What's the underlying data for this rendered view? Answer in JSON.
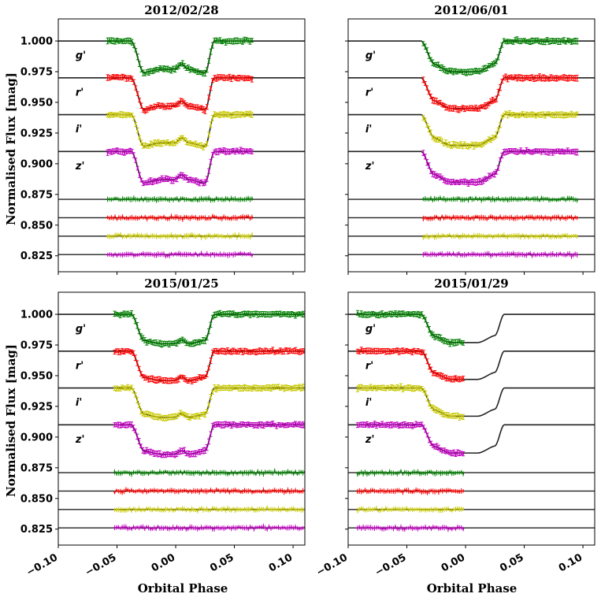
{
  "figure": {
    "ylabel": "Normalised Flux [mag]",
    "xlabel": "Orbital Phase"
  },
  "chart_data": {
    "type": "scatter",
    "x_range": [
      -0.1,
      0.11
    ],
    "y_range": [
      0.812,
      1.018
    ],
    "x_ticks": [
      -0.1,
      -0.05,
      0.0,
      0.05,
      0.1
    ],
    "x_tick_labels": [
      "−0.10",
      "−0.05",
      "0.00",
      "0.05",
      "0.10"
    ],
    "y_ticks": [
      1.0,
      0.975,
      0.95,
      0.925,
      0.9,
      0.875,
      0.85,
      0.825
    ],
    "y_tick_labels": [
      "1.000",
      "0.975",
      "0.950",
      "0.925",
      "0.900",
      "0.875",
      "0.850",
      "0.825"
    ],
    "bands": [
      {
        "label": "g'",
        "color": "#008000",
        "offset": 1.0,
        "residual_level": 0.871
      },
      {
        "label": "r'",
        "color": "#ff0000",
        "offset": 0.97,
        "residual_level": 0.856
      },
      {
        "label": "i'",
        "color": "#c8c800",
        "offset": 0.94,
        "residual_level": 0.841
      },
      {
        "label": "z'",
        "color": "#bf00bf",
        "offset": 0.91,
        "residual_level": 0.826
      }
    ],
    "panels": [
      {
        "title": "2012/02/28",
        "data_x_range": [
          -0.058,
          0.065
        ],
        "ingress_depth": 0.026,
        "bottom_depth": 0.023,
        "spot_bump": 0.004
      },
      {
        "title": "2012/06/01",
        "data_x_range": [
          -0.036,
          0.095
        ],
        "ingress_depth": 0.018,
        "bottom_depth": 0.025,
        "spot_bump": 0.0
      },
      {
        "title": "2015/01/25",
        "data_x_range": [
          -0.052,
          0.11
        ],
        "ingress_depth": 0.021,
        "bottom_depth": 0.024,
        "spot_bump": 0.003
      },
      {
        "title": "2015/01/29",
        "data_x_range": [
          -0.092,
          -0.002
        ],
        "ingress_depth": 0.017,
        "bottom_depth": 0.023,
        "spot_bump": 0.0
      }
    ]
  }
}
